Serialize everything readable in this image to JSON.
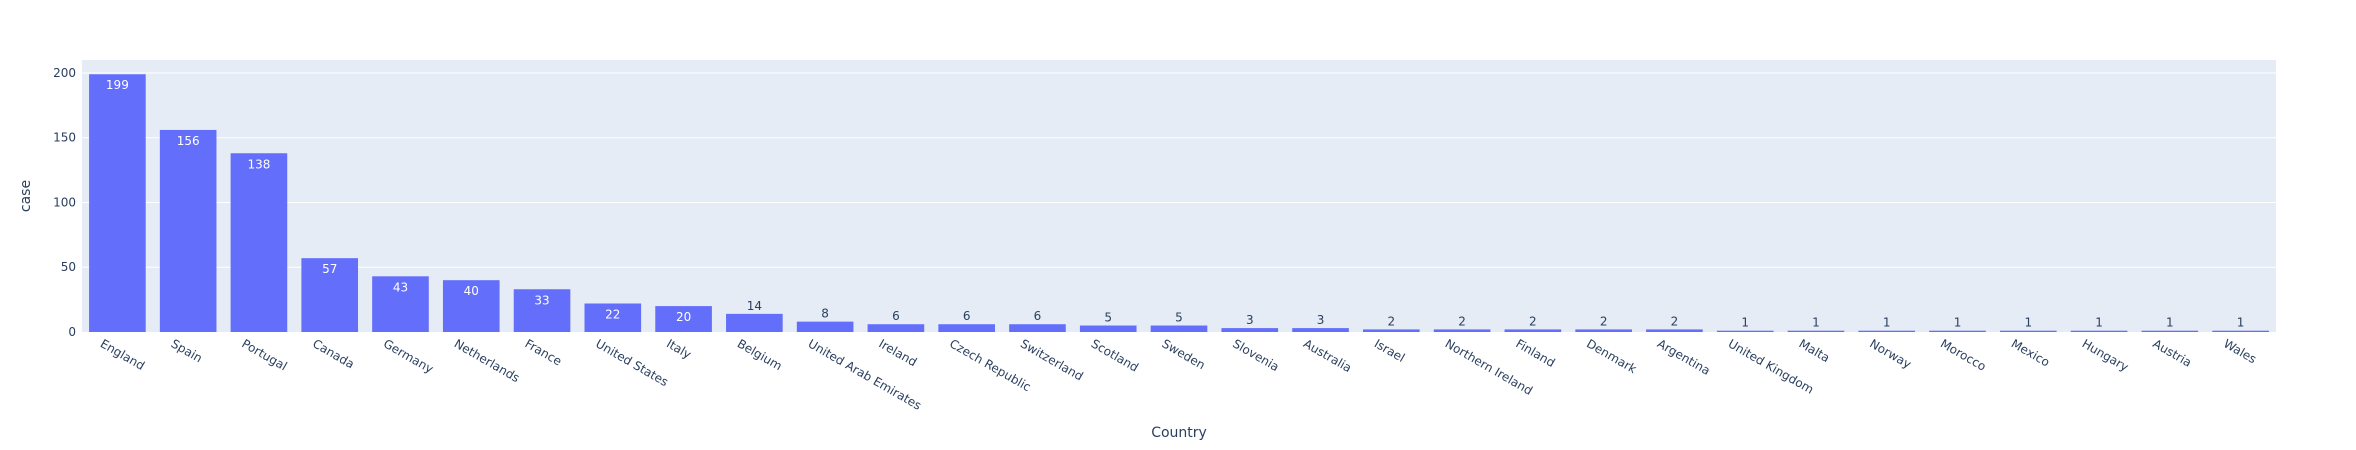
{
  "chart_data": {
    "type": "bar",
    "title": "",
    "xlabel": "Country",
    "ylabel": "case",
    "ylim": [
      0,
      210
    ],
    "yticks": [
      0,
      50,
      100,
      150,
      200
    ],
    "grid": true,
    "categories": [
      "England",
      "Spain",
      "Portugal",
      "Canada",
      "Germany",
      "Netherlands",
      "France",
      "United States",
      "Italy",
      "Belgium",
      "United Arab Emirates",
      "Ireland",
      "Czech Republic",
      "Switzerland",
      "Scotland",
      "Sweden",
      "Slovenia",
      "Australia",
      "Israel",
      "Northern Ireland",
      "Finland",
      "Denmark",
      "Argentina",
      "United Kingdom",
      "Malta",
      "Norway",
      "Morocco",
      "Mexico",
      "Hungary",
      "Austria",
      "Wales"
    ],
    "values": [
      199,
      156,
      138,
      57,
      43,
      40,
      33,
      22,
      20,
      14,
      8,
      6,
      6,
      6,
      5,
      5,
      3,
      3,
      2,
      2,
      2,
      2,
      2,
      1,
      1,
      1,
      1,
      1,
      1,
      1,
      1
    ],
    "colors": {
      "bar": "#636efa",
      "plot_bg": "#e5ecf6",
      "grid": "#ffffff",
      "text": "#2a3f5f"
    }
  }
}
